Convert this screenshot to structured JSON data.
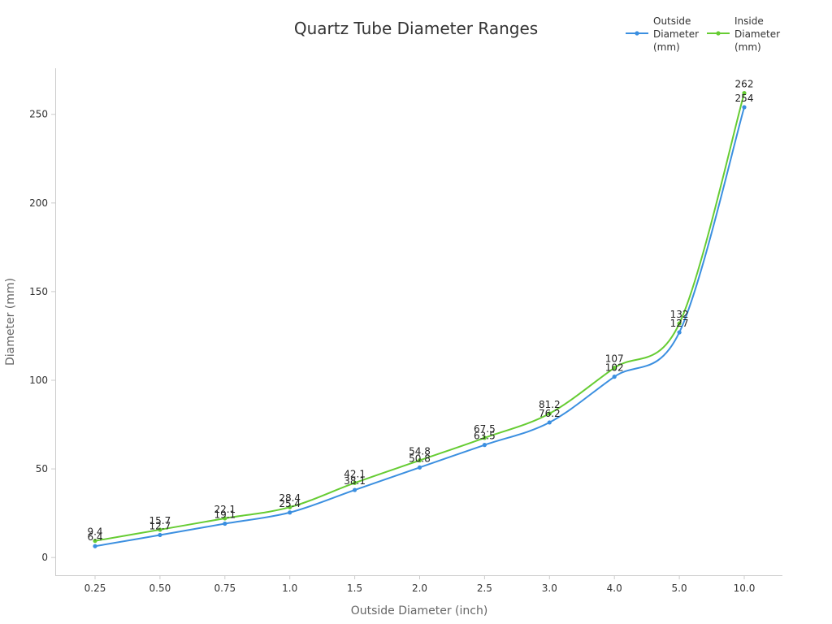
{
  "chart_data": {
    "type": "line",
    "title": "Quartz Tube Diameter Ranges",
    "xlabel": "Outside Diameter (inch)",
    "ylabel": "Diameter (mm)",
    "categories": [
      "0.25",
      "0.50",
      "0.75",
      "1.0",
      "1.5",
      "2.0",
      "2.5",
      "3.0",
      "4.0",
      "5.0",
      "10.0"
    ],
    "ylim": [
      -10,
      276
    ],
    "yticks": [
      "0",
      "50",
      "100",
      "150",
      "200",
      "250"
    ],
    "grid": false,
    "legend_position": "top-right",
    "series": [
      {
        "name": "Outside Diameter (mm)",
        "legend_lines": [
          "Outside",
          "Diameter",
          "(mm)"
        ],
        "color": "#3b8fe0",
        "values": [
          6.4,
          12.7,
          19.1,
          25.4,
          38.1,
          50.8,
          63.5,
          76.2,
          102,
          127,
          254
        ],
        "labels": [
          "6.4",
          "12.7",
          "19.1",
          "25.4",
          "38.1",
          "50.8",
          "63.5",
          "76.2",
          "102",
          "127",
          "254"
        ]
      },
      {
        "name": "Inside Diameter (mm)",
        "legend_lines": [
          "Inside",
          "Diameter",
          "(mm)"
        ],
        "color": "#66cc33",
        "values": [
          9.4,
          15.7,
          22.1,
          28.4,
          42.1,
          54.8,
          67.5,
          81.2,
          107,
          132,
          262
        ],
        "labels": [
          "9.4",
          "15.7",
          "22.1",
          "28.4",
          "42.1",
          "54.8",
          "67.5",
          "81.2",
          "107",
          "132",
          "262"
        ]
      }
    ]
  }
}
